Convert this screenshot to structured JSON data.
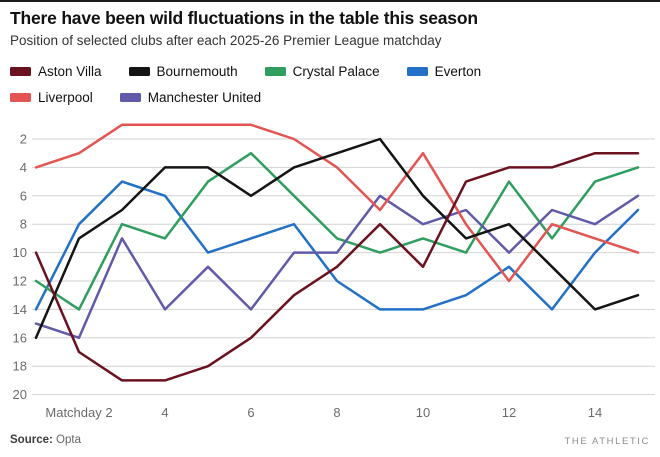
{
  "header": {
    "title": "There have been wild fluctuations in the table this season",
    "subtitle": "Position of selected clubs after each 2025-26 Premier League matchday"
  },
  "legend": {
    "items": [
      {
        "label": "Aston Villa",
        "color": "#6b1220",
        "row": 0
      },
      {
        "label": "Bournemouth",
        "color": "#141414",
        "row": 0
      },
      {
        "label": "Crystal Palace",
        "color": "#2f9e5f",
        "row": 0
      },
      {
        "label": "Everton",
        "color": "#2271c7",
        "row": 0
      },
      {
        "label": "Liverpool",
        "color": "#e25552",
        "row": 1
      },
      {
        "label": "Manchester United",
        "color": "#615aa9",
        "row": 1
      }
    ]
  },
  "chart_data": {
    "type": "line",
    "title": "There have been wild fluctuations in the table this season",
    "subtitle": "Position of selected clubs after each 2025-26 Premier League matchday",
    "x": [
      1,
      2,
      3,
      4,
      5,
      6,
      7,
      8,
      9,
      10,
      11,
      12,
      13,
      14,
      15
    ],
    "x_unit": "matchday",
    "xticks": [
      2,
      4,
      6,
      8,
      10,
      12,
      14
    ],
    "xtick_labels": [
      "Matchday 2",
      "4",
      "6",
      "8",
      "10",
      "12",
      "14"
    ],
    "yticks": [
      2,
      4,
      6,
      8,
      10,
      12,
      14,
      16,
      18,
      20
    ],
    "ylim": [
      1,
      20
    ],
    "y_inverted": true,
    "grid": "horizontal",
    "grid_color": "#d2d2d2",
    "tick_color": "#6b6b6b",
    "legend_position": "top",
    "series": [
      {
        "name": "Aston Villa",
        "color": "#6b1220",
        "values": [
          10,
          17,
          19,
          19,
          18,
          16,
          13,
          11,
          8,
          11,
          5,
          4,
          4,
          3,
          3
        ]
      },
      {
        "name": "Bournemouth",
        "color": "#141414",
        "values": [
          16,
          9,
          7,
          4,
          4,
          6,
          4,
          3,
          2,
          6,
          9,
          8,
          11,
          14,
          13
        ]
      },
      {
        "name": "Crystal Palace",
        "color": "#2f9e5f",
        "values": [
          12,
          14,
          8,
          9,
          5,
          3,
          6,
          9,
          10,
          9,
          10,
          5,
          9,
          5,
          4
        ]
      },
      {
        "name": "Everton",
        "color": "#2271c7",
        "values": [
          14,
          8,
          5,
          6,
          10,
          9,
          8,
          12,
          14,
          14,
          13,
          11,
          14,
          10,
          7
        ]
      },
      {
        "name": "Liverpool",
        "color": "#e25552",
        "values": [
          4,
          3,
          1,
          1,
          1,
          1,
          2,
          4,
          7,
          3,
          8,
          12,
          8,
          9,
          10
        ]
      },
      {
        "name": "Manchester United",
        "color": "#615aa9",
        "values": [
          15,
          16,
          9,
          14,
          11,
          14,
          10,
          10,
          6,
          8,
          7,
          10,
          7,
          8,
          6
        ]
      }
    ]
  },
  "footer": {
    "source_label": "Source:",
    "source_value": "Opta",
    "brand": "THE ATHLETIC"
  }
}
